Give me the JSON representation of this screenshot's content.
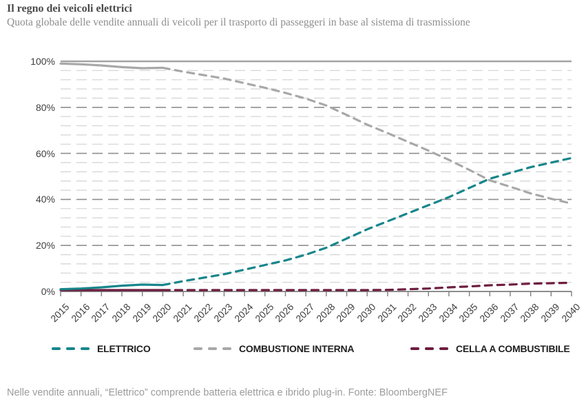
{
  "header": {
    "title": "Il regno dei veicoli elettrici",
    "subtitle": "Quota globale delle vendite annuali di veicoli per il trasporto di passeggeri in base al sistema di trasmissione"
  },
  "footer": {
    "note": "Nelle vendite annuali, “Elettrico” comprende batteria elettrica e ibrido plug-in. Fonte: BloombergNEF"
  },
  "chart_data": {
    "type": "line",
    "title": "Il regno dei veicoli elettrici",
    "x": [
      "2015",
      "2016",
      "2017",
      "2018",
      "2019",
      "2020",
      "2021",
      "2022",
      "2023",
      "2024",
      "2025",
      "2026",
      "2027",
      "2028",
      "2029",
      "2030",
      "2031",
      "2032",
      "2033",
      "2034",
      "2035",
      "2036",
      "2037",
      "2038",
      "2039",
      "2040"
    ],
    "series": [
      {
        "name": "ELETTRICO",
        "color": "#17868b",
        "values": [
          1,
          1.3,
          1.8,
          2.5,
          3,
          2.8,
          4.5,
          6,
          7.5,
          9.5,
          11.5,
          13.5,
          16,
          19,
          23,
          27,
          30.5,
          34,
          37.5,
          41,
          45,
          49,
          51.5,
          54,
          56,
          58
        ]
      },
      {
        "name": "COMBUSTIONE INTERNA",
        "color": "#a8a8a8",
        "values": [
          99,
          98.7,
          98.2,
          97.5,
          97,
          97.2,
          95.5,
          94,
          92.5,
          90.5,
          88.5,
          86.3,
          83.8,
          80.8,
          76.7,
          72.5,
          68.8,
          65,
          61.2,
          57.2,
          52.8,
          48.3,
          45.5,
          42.6,
          40.3,
          38.2
        ]
      },
      {
        "name": "CELLA A COMBUSTIBILE",
        "color": "#6e1d3f",
        "values": [
          0,
          0,
          0,
          0,
          0,
          0,
          0,
          0,
          0,
          0,
          0,
          0.2,
          0.2,
          0.2,
          0.3,
          0.5,
          0.7,
          1,
          1.3,
          1.8,
          2.2,
          2.7,
          3,
          3.4,
          3.6,
          3.8
        ]
      }
    ],
    "forecast_start": "2020",
    "line_style": {
      "history": "solid",
      "forecast": "dashed"
    },
    "ylim": [
      0,
      100
    ],
    "yticks": [
      0,
      20,
      40,
      60,
      80,
      100
    ],
    "ytick_labels": [
      "0%",
      "20%",
      "40%",
      "60%",
      "80%",
      "100%"
    ],
    "grid": true,
    "minor_grid_step": 4,
    "legend_position": "bottom",
    "style": {
      "grid_minor": "#d6d6d6",
      "grid_major": "#8f8f8f",
      "grid_top": "#a3a3a3",
      "axis": "#7d7d7d",
      "tick_label": "#3f3f3f"
    }
  }
}
